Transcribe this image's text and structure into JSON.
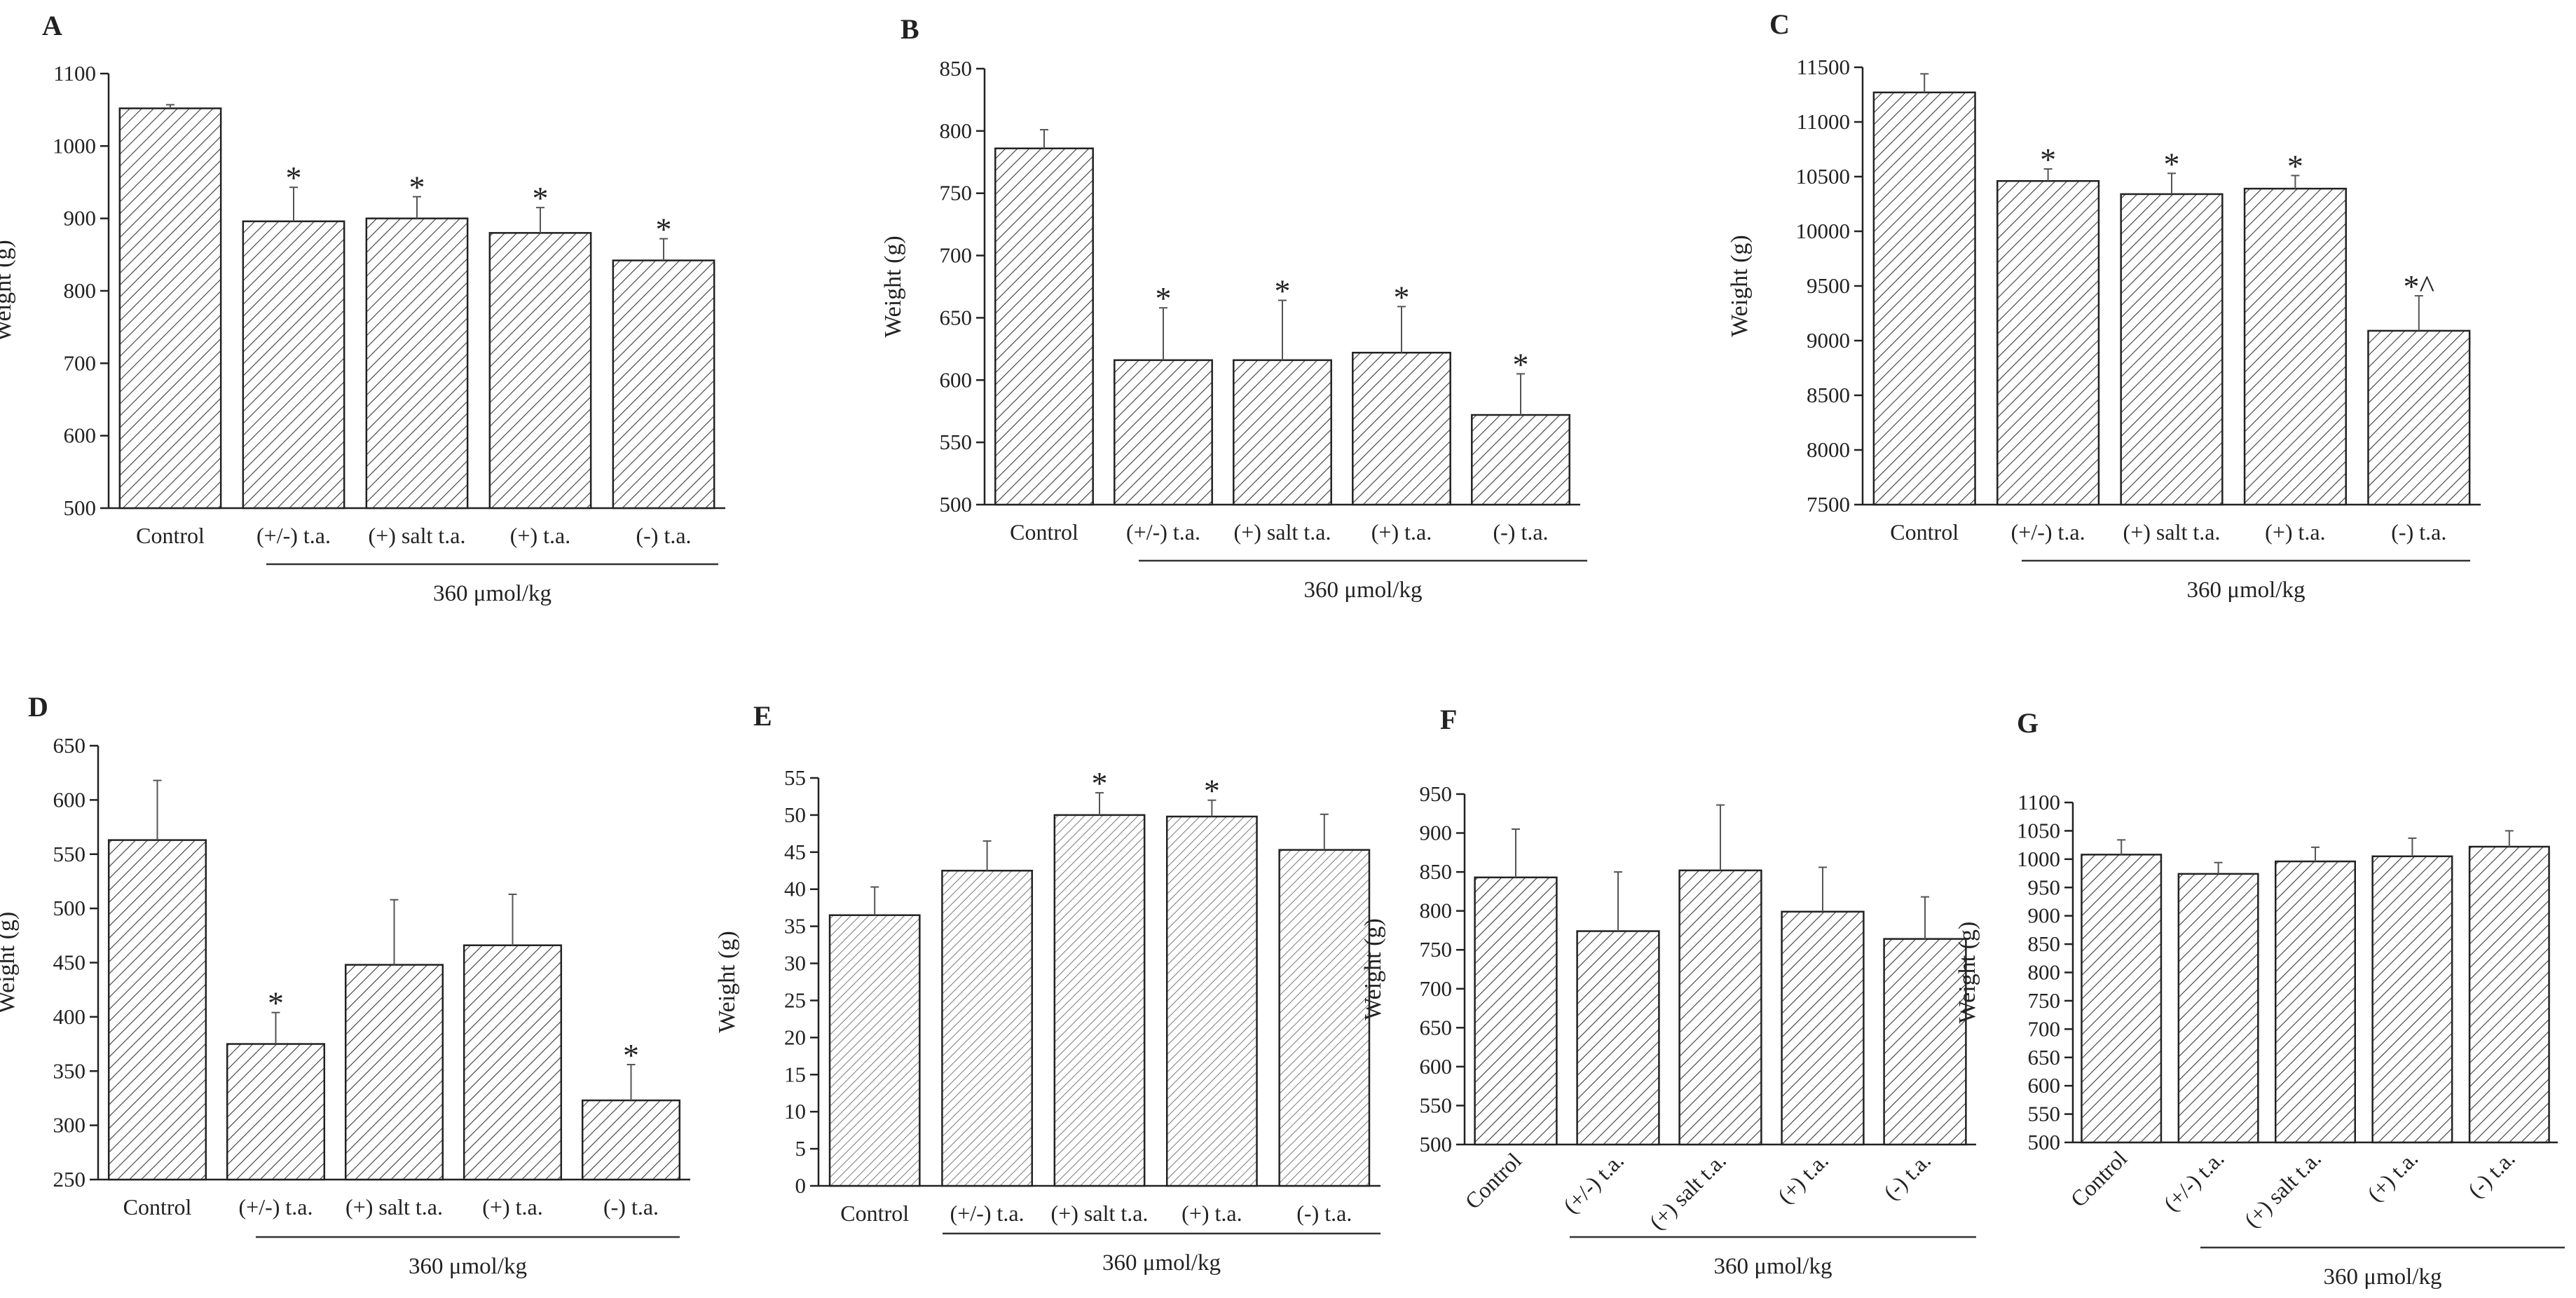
{
  "chart_data": [
    {
      "type": "bar",
      "panel": "A",
      "ylabel": "Weight (g)",
      "ylim": [
        500,
        1100
      ],
      "yticks": [
        500,
        600,
        700,
        800,
        900,
        1000,
        1100
      ],
      "categories": [
        "Control",
        "(+/-) t.a.",
        "(+) salt t.a.",
        "(+) t.a.",
        "(-) t.a."
      ],
      "values": [
        1052,
        896,
        900,
        880,
        842
      ],
      "errors": [
        5,
        47,
        30,
        35,
        30
      ],
      "significance": [
        "",
        "*",
        "*",
        "*",
        "*"
      ],
      "group_label": "360 μmol/kg"
    },
    {
      "type": "bar",
      "panel": "B",
      "ylabel": "Weight (g)",
      "ylim": [
        500,
        850
      ],
      "yticks": [
        500,
        550,
        600,
        650,
        700,
        750,
        800,
        850
      ],
      "categories": [
        "Control",
        "(+/-) t.a.",
        "(+) salt t.a.",
        "(+) t.a.",
        "(-) t.a."
      ],
      "values": [
        786,
        616,
        616,
        622,
        572
      ],
      "errors": [
        15,
        42,
        48,
        37,
        33
      ],
      "significance": [
        "",
        "*",
        "*",
        "*",
        "*"
      ],
      "group_label": "360 μmol/kg"
    },
    {
      "type": "bar",
      "panel": "C",
      "ylabel": "Weight (g)",
      "ylim": [
        7500,
        11500
      ],
      "yticks": [
        7500,
        8000,
        8500,
        9000,
        9500,
        10000,
        10500,
        11000,
        11500
      ],
      "categories": [
        "Control",
        "(+/-) t.a.",
        "(+) salt t.a.",
        "(+) t.a.",
        "(-) t.a."
      ],
      "values": [
        11270,
        10460,
        10340,
        10390,
        9090
      ],
      "errors": [
        170,
        110,
        190,
        120,
        320
      ],
      "significance": [
        "",
        "*",
        "*",
        "*",
        "*^"
      ],
      "group_label": "360 μmol/kg"
    },
    {
      "type": "bar",
      "panel": "D",
      "ylabel": "Weight (g)",
      "ylim": [
        250,
        650
      ],
      "yticks": [
        250,
        300,
        350,
        400,
        450,
        500,
        550,
        600,
        650
      ],
      "categories": [
        "Control",
        "(+/-) t.a.",
        "(+) salt t.a.",
        "(+) t.a.",
        "(-) t.a."
      ],
      "values": [
        563,
        375,
        448,
        466,
        323
      ],
      "errors": [
        55,
        29,
        60,
        47,
        33
      ],
      "significance": [
        "",
        "*",
        "",
        "",
        "*"
      ],
      "group_label": "360 μmol/kg"
    },
    {
      "type": "bar",
      "panel": "E",
      "ylabel": "Weight (g)",
      "ylim": [
        0,
        55
      ],
      "yticks": [
        0,
        5,
        10,
        15,
        20,
        25,
        30,
        35,
        40,
        45,
        50,
        55
      ],
      "categories": [
        "Control",
        "(+/-) t.a.",
        "(+) salt t.a.",
        "(+) t.a.",
        "(-) t.a."
      ],
      "values": [
        36.5,
        42.5,
        50,
        49.8,
        45.3
      ],
      "errors": [
        3.8,
        4,
        3,
        2.2,
        4.8
      ],
      "significance": [
        "",
        "",
        "*",
        "*",
        ""
      ],
      "group_label": "360 μmol/kg"
    },
    {
      "type": "bar",
      "panel": "F",
      "ylabel": "Weight (g)",
      "ylim": [
        500,
        950
      ],
      "yticks": [
        500,
        550,
        600,
        650,
        700,
        750,
        800,
        850,
        900,
        950
      ],
      "categories": [
        "Control",
        "(+/-) t.a.",
        "(+) salt t.a.",
        "(+) t.a.",
        "(-) t.a."
      ],
      "values": [
        843,
        774,
        852,
        799,
        764
      ],
      "errors": [
        62,
        76,
        84,
        57,
        54
      ],
      "significance": [
        "",
        "",
        "",
        "",
        ""
      ],
      "group_label": "360 μmol/kg"
    },
    {
      "type": "bar",
      "panel": "G",
      "ylabel": "Weight (g)",
      "ylim": [
        500,
        1100
      ],
      "yticks": [
        500,
        550,
        600,
        650,
        700,
        750,
        800,
        850,
        900,
        950,
        1000,
        1050,
        1100
      ],
      "categories": [
        "Control",
        "(+/-) t.a.",
        "(+) salt t.a.",
        "(+) t.a.",
        "(-) t.a."
      ],
      "values": [
        1008,
        974,
        996,
        1005,
        1022
      ],
      "errors": [
        26,
        20,
        25,
        32,
        28
      ],
      "significance": [
        "",
        "",
        "",
        "",
        ""
      ],
      "group_label": "360 μmol/kg"
    }
  ]
}
